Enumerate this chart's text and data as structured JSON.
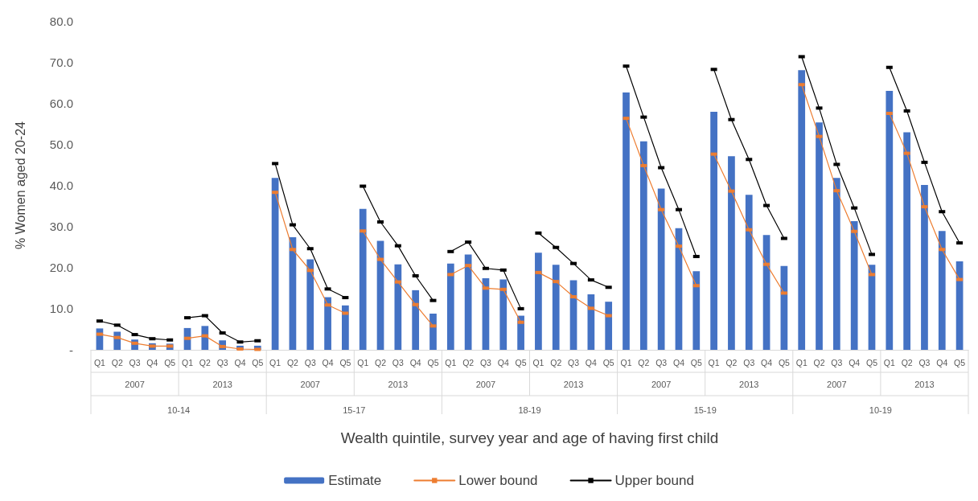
{
  "chart_data": {
    "type": "bar",
    "xlabel": "Wealth quintile, survey year and age of having first child",
    "ylabel": "% Women aged 20-24",
    "categories": [
      "Q1",
      "Q2",
      "Q3",
      "Q4",
      "Q5",
      "Q1",
      "Q2",
      "Q3",
      "Q4",
      "Q5",
      "Q1",
      "Q2",
      "Q3",
      "Q4",
      "Q5",
      "Q1",
      "Q2",
      "Q3",
      "Q4",
      "Q5",
      "Q1",
      "Q2",
      "Q3",
      "Q4",
      "Q5",
      "Q1",
      "Q2",
      "Q3",
      "Q4",
      "Q5",
      "Q1",
      "Q2",
      "Q3",
      "Q4",
      "Q5",
      "Q1",
      "Q2",
      "Q3",
      "Q4",
      "Q5",
      "Q1",
      "Q2",
      "Q3",
      "Q4",
      "Q5",
      "Q1",
      "Q2",
      "Q3",
      "Q4",
      "Q5"
    ],
    "annotations": [
      "2007",
      "2013",
      "2007",
      "2013",
      "2007",
      "2013",
      "2007",
      "2013",
      "2007",
      "2013",
      "10-14",
      "15-17",
      "18-19",
      "15-19",
      "10-19"
    ],
    "series": [
      {
        "name": "Estimate",
        "color": "#4472c4",
        "values": [
          5.2,
          4.4,
          2.5,
          1.6,
          1.5,
          5.3,
          5.8,
          2.3,
          1.0,
          1.0,
          41.8,
          27.4,
          22.0,
          12.8,
          10.8,
          34.3,
          26.5,
          20.8,
          14.5,
          8.8,
          21.0,
          23.2,
          17.4,
          17.1,
          8.3,
          23.6,
          20.7,
          16.9,
          13.5,
          11.7,
          62.6,
          50.7,
          39.2,
          29.6,
          19.1,
          57.9,
          47.1,
          37.7,
          27.9,
          20.4,
          68.0,
          55.3,
          41.8,
          31.3,
          20.7,
          63.0,
          52.9,
          40.1,
          28.9,
          21.5
        ]
      },
      {
        "name": "Lower bound",
        "type": "line",
        "color": "#ed7d31",
        "values": [
          3.8,
          3.0,
          1.6,
          0.9,
          0.9,
          2.8,
          3.4,
          0.8,
          0.2,
          0.1,
          38.3,
          24.4,
          19.3,
          10.9,
          8.9,
          28.9,
          22.0,
          16.5,
          11.0,
          5.8,
          18.3,
          20.5,
          15.0,
          14.7,
          6.7,
          18.8,
          16.6,
          12.9,
          10.1,
          8.3,
          56.3,
          44.8,
          34.1,
          25.2,
          15.6,
          47.6,
          38.6,
          29.2,
          20.8,
          13.8,
          64.5,
          51.9,
          38.7,
          28.8,
          18.3,
          57.5,
          47.8,
          34.8,
          24.4,
          17.1
        ]
      },
      {
        "name": "Upper bound",
        "type": "line",
        "color": "#000000",
        "values": [
          7.0,
          6.0,
          3.7,
          2.7,
          2.4,
          7.8,
          8.3,
          4.1,
          1.9,
          2.2,
          45.3,
          30.4,
          24.6,
          14.8,
          12.7,
          39.8,
          31.1,
          25.3,
          18.0,
          12.0,
          23.9,
          26.2,
          19.8,
          19.4,
          10.0,
          28.4,
          24.9,
          21.0,
          17.0,
          15.2,
          69.0,
          56.6,
          44.3,
          34.1,
          22.7,
          68.2,
          56.0,
          46.3,
          35.1,
          27.1,
          71.3,
          58.8,
          45.1,
          34.5,
          23.2,
          68.7,
          58.1,
          45.6,
          33.6,
          26.0
        ]
      }
    ],
    "ylim": [
      0,
      80
    ],
    "yticks": [
      {
        "value": 0,
        "label": "-"
      },
      {
        "value": 10,
        "label": "10.0"
      },
      {
        "value": 20,
        "label": "20.0"
      },
      {
        "value": 30,
        "label": "30.0"
      },
      {
        "value": 40,
        "label": "40.0"
      },
      {
        "value": 50,
        "label": "50.0"
      },
      {
        "value": 60,
        "label": "60.0"
      },
      {
        "value": 70,
        "label": "70.0"
      },
      {
        "value": 80,
        "label": "80.0"
      }
    ],
    "grid": false,
    "legend": "bottom",
    "marker": "square",
    "line_style": "solid"
  }
}
